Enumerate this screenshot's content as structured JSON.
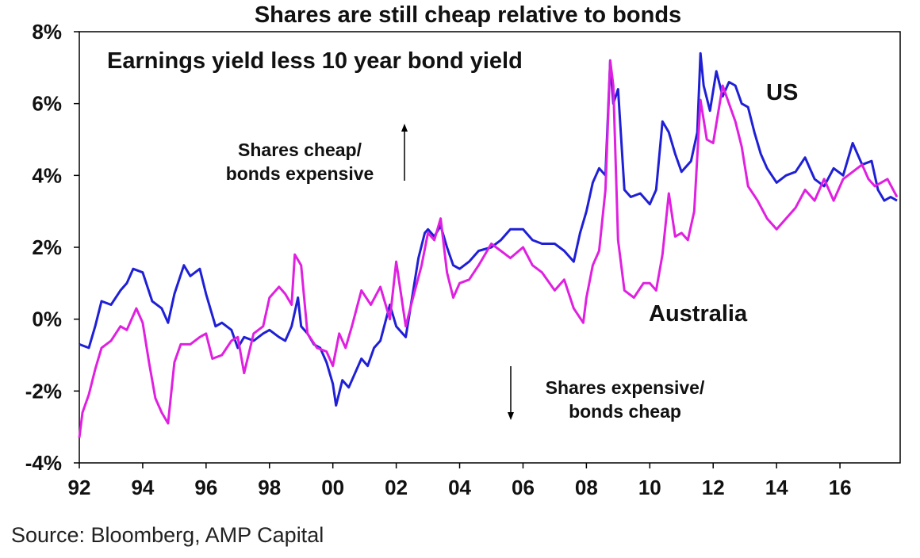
{
  "title": "Shares are still cheap relative to bonds",
  "source": "Source: Bloomberg, AMP Capital",
  "chart_data": {
    "type": "line",
    "title": "Shares are still cheap relative to bonds",
    "subtitle": "Earnings yield less 10 year bond yield",
    "xlabel": "",
    "ylabel": "",
    "xlim": [
      1992,
      2017.9
    ],
    "ylim": [
      -4,
      8
    ],
    "y_ticks": [
      -4,
      -2,
      0,
      2,
      4,
      6,
      8
    ],
    "y_tick_labels": [
      "-4%",
      "-2%",
      "0%",
      "2%",
      "4%",
      "6%",
      "8%"
    ],
    "x_ticks": [
      1992,
      1994,
      1996,
      1998,
      2000,
      2002,
      2004,
      2006,
      2008,
      2010,
      2012,
      2014,
      2016
    ],
    "x_tick_labels": [
      "92",
      "94",
      "96",
      "98",
      "00",
      "02",
      "04",
      "06",
      "08",
      "10",
      "12",
      "14",
      "16"
    ],
    "grid": false,
    "annotations": {
      "upper_line1": "Shares cheap/",
      "upper_line2": "bonds expensive",
      "lower_line1": "Shares expensive/",
      "lower_line2": "bonds cheap"
    },
    "series": [
      {
        "name": "US",
        "color": "#1f1fd6",
        "x": [
          1992.0,
          1992.3,
          1992.5,
          1992.7,
          1993.0,
          1993.3,
          1993.5,
          1993.7,
          1994.0,
          1994.3,
          1994.6,
          1994.8,
          1995.0,
          1995.3,
          1995.5,
          1995.8,
          1996.0,
          1996.3,
          1996.5,
          1996.8,
          1997.0,
          1997.2,
          1997.5,
          1997.8,
          1998.0,
          1998.3,
          1998.5,
          1998.7,
          1998.9,
          1999.0,
          1999.2,
          1999.4,
          1999.6,
          1999.8,
          2000.0,
          2000.1,
          2000.3,
          2000.5,
          2000.7,
          2000.9,
          2001.1,
          2001.3,
          2001.5,
          2001.8,
          2002.0,
          2002.3,
          2002.5,
          2002.7,
          2002.9,
          2003.0,
          2003.2,
          2003.4,
          2003.6,
          2003.8,
          2004.0,
          2004.3,
          2004.6,
          2005.0,
          2005.3,
          2005.6,
          2006.0,
          2006.3,
          2006.6,
          2007.0,
          2007.3,
          2007.6,
          2007.8,
          2008.0,
          2008.2,
          2008.4,
          2008.6,
          2008.75,
          2008.85,
          2009.0,
          2009.2,
          2009.4,
          2009.7,
          2010.0,
          2010.2,
          2010.4,
          2010.6,
          2010.8,
          2011.0,
          2011.3,
          2011.5,
          2011.6,
          2011.7,
          2011.9,
          2012.1,
          2012.3,
          2012.5,
          2012.7,
          2012.9,
          2013.1,
          2013.3,
          2013.5,
          2013.7,
          2014.0,
          2014.3,
          2014.6,
          2014.9,
          2015.2,
          2015.5,
          2015.8,
          2016.1,
          2016.4,
          2016.7,
          2017.0,
          2017.2,
          2017.4,
          2017.6,
          2017.8
        ],
        "values": [
          -0.7,
          -0.8,
          -0.2,
          0.5,
          0.4,
          0.8,
          1.0,
          1.4,
          1.3,
          0.5,
          0.3,
          -0.1,
          0.7,
          1.5,
          1.2,
          1.4,
          0.7,
          -0.2,
          -0.1,
          -0.3,
          -0.8,
          -0.5,
          -0.6,
          -0.4,
          -0.3,
          -0.5,
          -0.6,
          -0.2,
          0.6,
          -0.2,
          -0.4,
          -0.7,
          -0.8,
          -1.2,
          -1.8,
          -2.4,
          -1.7,
          -1.9,
          -1.5,
          -1.1,
          -1.3,
          -0.8,
          -0.6,
          0.4,
          -0.2,
          -0.5,
          0.6,
          1.7,
          2.4,
          2.5,
          2.3,
          2.6,
          2.0,
          1.5,
          1.4,
          1.6,
          1.9,
          2.0,
          2.2,
          2.5,
          2.5,
          2.2,
          2.1,
          2.1,
          1.9,
          1.6,
          2.4,
          3.0,
          3.8,
          4.2,
          4.0,
          7.2,
          6.0,
          6.4,
          3.6,
          3.4,
          3.5,
          3.2,
          3.6,
          5.5,
          5.2,
          4.6,
          4.1,
          4.4,
          5.2,
          7.4,
          6.5,
          5.8,
          6.9,
          6.2,
          6.6,
          6.5,
          6.0,
          5.9,
          5.2,
          4.6,
          4.2,
          3.8,
          4.0,
          4.1,
          4.5,
          3.9,
          3.7,
          4.2,
          4.0,
          4.9,
          4.3,
          4.4,
          3.6,
          3.3,
          3.4,
          3.3
        ]
      },
      {
        "name": "Australia",
        "color": "#e020e0",
        "x": [
          1992.0,
          1992.1,
          1992.3,
          1992.5,
          1992.7,
          1993.0,
          1993.3,
          1993.5,
          1993.8,
          1994.0,
          1994.2,
          1994.4,
          1994.6,
          1994.8,
          1995.0,
          1995.2,
          1995.5,
          1995.8,
          1996.0,
          1996.2,
          1996.5,
          1996.8,
          1997.0,
          1997.2,
          1997.5,
          1997.8,
          1998.0,
          1998.3,
          1998.5,
          1998.7,
          1998.8,
          1999.0,
          1999.2,
          1999.5,
          1999.8,
          2000.0,
          2000.2,
          2000.4,
          2000.6,
          2000.9,
          2001.2,
          2001.5,
          2001.8,
          2002.0,
          2002.3,
          2002.5,
          2002.8,
          2003.0,
          2003.2,
          2003.4,
          2003.6,
          2003.8,
          2004.0,
          2004.3,
          2004.6,
          2005.0,
          2005.3,
          2005.6,
          2006.0,
          2006.3,
          2006.6,
          2007.0,
          2007.3,
          2007.6,
          2007.9,
          2008.0,
          2008.2,
          2008.4,
          2008.6,
          2008.75,
          2008.85,
          2009.0,
          2009.2,
          2009.5,
          2009.8,
          2010.0,
          2010.2,
          2010.4,
          2010.6,
          2010.8,
          2011.0,
          2011.2,
          2011.4,
          2011.6,
          2011.8,
          2012.0,
          2012.3,
          2012.5,
          2012.7,
          2012.9,
          2013.1,
          2013.4,
          2013.7,
          2014.0,
          2014.3,
          2014.6,
          2014.9,
          2015.2,
          2015.5,
          2015.8,
          2016.1,
          2016.4,
          2016.7,
          2016.9,
          2017.1,
          2017.3,
          2017.5,
          2017.8
        ],
        "values": [
          -3.3,
          -2.6,
          -2.1,
          -1.4,
          -0.8,
          -0.6,
          -0.2,
          -0.3,
          0.3,
          -0.1,
          -1.2,
          -2.2,
          -2.6,
          -2.9,
          -1.2,
          -0.7,
          -0.7,
          -0.5,
          -0.4,
          -1.1,
          -1.0,
          -0.6,
          -0.5,
          -1.5,
          -0.4,
          -0.2,
          0.6,
          0.9,
          0.7,
          0.4,
          1.8,
          1.5,
          -0.4,
          -0.8,
          -0.9,
          -1.3,
          -0.4,
          -0.8,
          -0.2,
          0.8,
          0.4,
          0.9,
          0.0,
          1.6,
          -0.2,
          0.5,
          1.5,
          2.4,
          2.2,
          2.8,
          1.3,
          0.6,
          1.0,
          1.1,
          1.5,
          2.1,
          1.9,
          1.7,
          2.0,
          1.5,
          1.3,
          0.8,
          1.1,
          0.3,
          -0.1,
          0.6,
          1.5,
          1.9,
          3.6,
          7.2,
          6.5,
          2.2,
          0.8,
          0.6,
          1.0,
          1.0,
          0.8,
          1.8,
          3.5,
          2.3,
          2.4,
          2.2,
          3.0,
          6.1,
          5.0,
          4.9,
          6.5,
          6.0,
          5.5,
          4.8,
          3.7,
          3.3,
          2.8,
          2.5,
          2.8,
          3.1,
          3.6,
          3.3,
          3.9,
          3.3,
          3.9,
          4.1,
          4.3,
          3.9,
          3.7,
          3.8,
          3.9,
          3.4
        ]
      }
    ]
  }
}
